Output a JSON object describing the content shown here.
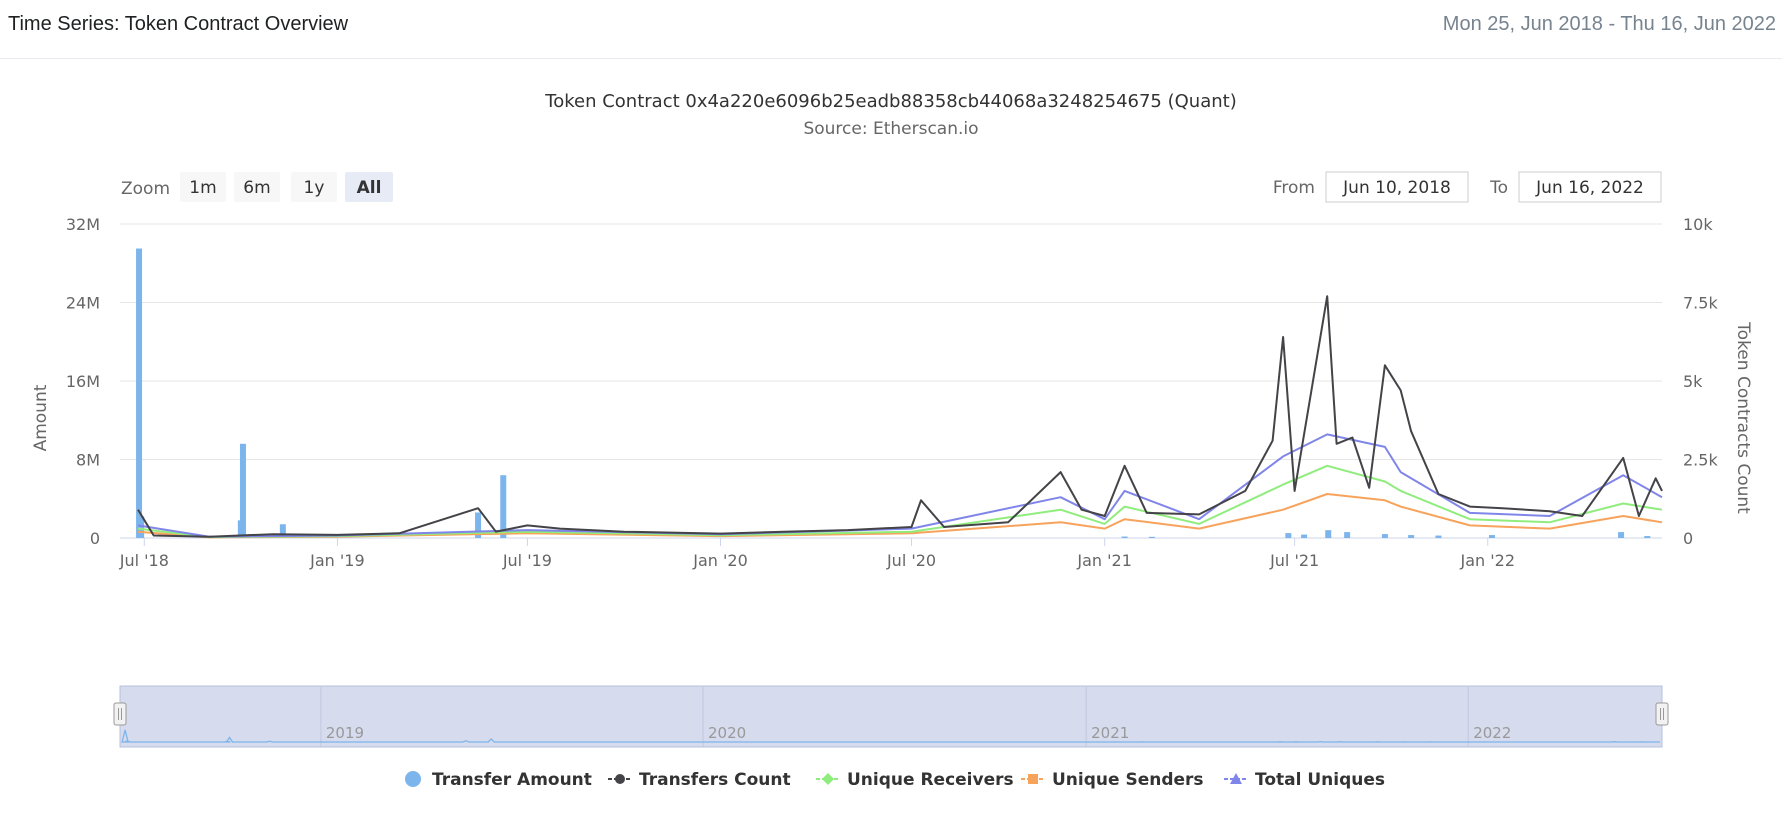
{
  "header": {
    "title": "Time Series: Token Contract Overview",
    "date_range": "Mon 25, Jun 2018 - Thu 16, Jun 2022"
  },
  "controls": {
    "zoom_label": "Zoom",
    "zoom_buttons": [
      "1m",
      "6m",
      "1y",
      "All"
    ],
    "active_zoom": "All",
    "from_label": "From",
    "from_value": "Jun 10, 2018",
    "to_label": "To",
    "to_value": "Jun 16, 2022"
  },
  "navigator": {
    "year_labels": [
      "2019",
      "2020",
      "2021",
      "2022"
    ]
  },
  "colors": {
    "transfer_amount": "#7cb5ec",
    "transfers_count": "#434348",
    "unique_receivers": "#90ed7d",
    "unique_senders": "#f7a35c",
    "total_uniques": "#8085e9",
    "navigator_fill": "#d6dbee"
  },
  "chart_data": {
    "type": "line",
    "title": "Token Contract 0x4a220e6096b25eadb88358cb44068a3248254675 (Quant)",
    "subtitle": "Source: Etherscan.io",
    "x_range": [
      "2018-06-25",
      "2022-06-16"
    ],
    "x_ticks": [
      "Jul '18",
      "Jan '19",
      "Jul '19",
      "Jan '20",
      "Jul '20",
      "Jan '21",
      "Jul '21",
      "Jan '22"
    ],
    "y_left": {
      "label": "Amount",
      "range": [
        0,
        32000000
      ],
      "ticks": [
        "0",
        "8M",
        "16M",
        "24M",
        "32M"
      ]
    },
    "y_right": {
      "label": "Token Contracts Count",
      "range": [
        0,
        10000
      ],
      "ticks": [
        "0",
        "2.5k",
        "5k",
        "7.5k",
        "10k"
      ]
    },
    "grid": true,
    "legend_position": "bottom",
    "series": [
      {
        "name": "Transfer Amount",
        "type": "column",
        "axis": "left",
        "points": [
          [
            "2018-06-26",
            29500000
          ],
          [
            "2018-06-28",
            2200000
          ],
          [
            "2018-10-01",
            1800000
          ],
          [
            "2018-10-03",
            9600000
          ],
          [
            "2018-11-10",
            1400000
          ],
          [
            "2019-05-15",
            2600000
          ],
          [
            "2019-06-08",
            6400000
          ],
          [
            "2021-01-20",
            150000
          ],
          [
            "2021-02-15",
            120000
          ],
          [
            "2021-06-25",
            500000
          ],
          [
            "2021-07-10",
            350000
          ],
          [
            "2021-08-02",
            800000
          ],
          [
            "2021-08-20",
            600000
          ],
          [
            "2021-09-25",
            400000
          ],
          [
            "2021-10-20",
            300000
          ],
          [
            "2021-11-15",
            250000
          ],
          [
            "2022-01-05",
            300000
          ],
          [
            "2022-05-08",
            600000
          ],
          [
            "2022-06-02",
            200000
          ]
        ]
      },
      {
        "name": "Transfers Count",
        "type": "line",
        "axis": "right",
        "points": [
          [
            "2018-06-25",
            900
          ],
          [
            "2018-07-10",
            80
          ],
          [
            "2018-09-01",
            40
          ],
          [
            "2018-11-01",
            120
          ],
          [
            "2019-01-01",
            100
          ],
          [
            "2019-03-01",
            150
          ],
          [
            "2019-05-15",
            950
          ],
          [
            "2019-06-01",
            200
          ],
          [
            "2019-07-01",
            400
          ],
          [
            "2019-08-01",
            300
          ],
          [
            "2019-10-01",
            200
          ],
          [
            "2020-01-01",
            140
          ],
          [
            "2020-03-01",
            200
          ],
          [
            "2020-05-01",
            250
          ],
          [
            "2020-07-01",
            350
          ],
          [
            "2020-07-10",
            1200
          ],
          [
            "2020-08-01",
            350
          ],
          [
            "2020-10-01",
            500
          ],
          [
            "2020-11-20",
            2100
          ],
          [
            "2020-12-10",
            900
          ],
          [
            "2021-01-01",
            700
          ],
          [
            "2021-01-20",
            2300
          ],
          [
            "2021-02-10",
            800
          ],
          [
            "2021-04-01",
            750
          ],
          [
            "2021-05-15",
            1500
          ],
          [
            "2021-06-10",
            3100
          ],
          [
            "2021-06-20",
            6400
          ],
          [
            "2021-07-01",
            1500
          ],
          [
            "2021-08-01",
            7700
          ],
          [
            "2021-08-10",
            3000
          ],
          [
            "2021-08-25",
            3200
          ],
          [
            "2021-09-10",
            1600
          ],
          [
            "2021-09-25",
            5500
          ],
          [
            "2021-10-10",
            4700
          ],
          [
            "2021-10-20",
            3400
          ],
          [
            "2021-11-15",
            1400
          ],
          [
            "2021-12-15",
            1000
          ],
          [
            "2022-01-15",
            950
          ],
          [
            "2022-03-01",
            850
          ],
          [
            "2022-04-01",
            700
          ],
          [
            "2022-05-10",
            2550
          ],
          [
            "2022-05-25",
            700
          ],
          [
            "2022-06-10",
            1900
          ],
          [
            "2022-06-16",
            1500
          ]
        ]
      },
      {
        "name": "Unique Receivers",
        "type": "line",
        "axis": "right",
        "points": [
          [
            "2018-06-25",
            300
          ],
          [
            "2018-09-01",
            30
          ],
          [
            "2019-01-01",
            60
          ],
          [
            "2019-07-01",
            200
          ],
          [
            "2020-01-01",
            90
          ],
          [
            "2020-07-01",
            200
          ],
          [
            "2020-11-20",
            900
          ],
          [
            "2021-01-01",
            450
          ],
          [
            "2021-01-20",
            1000
          ],
          [
            "2021-04-01",
            450
          ],
          [
            "2021-06-20",
            1700
          ],
          [
            "2021-08-01",
            2300
          ],
          [
            "2021-09-25",
            1800
          ],
          [
            "2021-10-10",
            1500
          ],
          [
            "2021-12-15",
            600
          ],
          [
            "2022-03-01",
            500
          ],
          [
            "2022-05-10",
            1100
          ],
          [
            "2022-06-16",
            900
          ]
        ]
      },
      {
        "name": "Unique Senders",
        "type": "line",
        "axis": "right",
        "points": [
          [
            "2018-06-25",
            200
          ],
          [
            "2018-09-01",
            20
          ],
          [
            "2019-01-01",
            40
          ],
          [
            "2019-07-01",
            150
          ],
          [
            "2020-01-01",
            60
          ],
          [
            "2020-07-01",
            150
          ],
          [
            "2020-11-20",
            500
          ],
          [
            "2021-01-01",
            300
          ],
          [
            "2021-01-20",
            600
          ],
          [
            "2021-04-01",
            300
          ],
          [
            "2021-06-20",
            900
          ],
          [
            "2021-08-01",
            1400
          ],
          [
            "2021-09-25",
            1200
          ],
          [
            "2021-10-10",
            1000
          ],
          [
            "2021-12-15",
            400
          ],
          [
            "2022-03-01",
            300
          ],
          [
            "2022-05-10",
            700
          ],
          [
            "2022-06-16",
            500
          ]
        ]
      },
      {
        "name": "Total Uniques",
        "type": "line",
        "axis": "right",
        "points": [
          [
            "2018-06-25",
            400
          ],
          [
            "2018-09-01",
            40
          ],
          [
            "2019-01-01",
            80
          ],
          [
            "2019-07-01",
            250
          ],
          [
            "2020-01-01",
            120
          ],
          [
            "2020-07-01",
            300
          ],
          [
            "2020-11-20",
            1300
          ],
          [
            "2021-01-01",
            600
          ],
          [
            "2021-01-20",
            1500
          ],
          [
            "2021-04-01",
            600
          ],
          [
            "2021-06-20",
            2600
          ],
          [
            "2021-08-01",
            3300
          ],
          [
            "2021-09-25",
            2900
          ],
          [
            "2021-10-10",
            2100
          ],
          [
            "2021-12-15",
            800
          ],
          [
            "2022-03-01",
            700
          ],
          [
            "2022-05-10",
            2000
          ],
          [
            "2022-06-16",
            1300
          ]
        ]
      }
    ]
  }
}
